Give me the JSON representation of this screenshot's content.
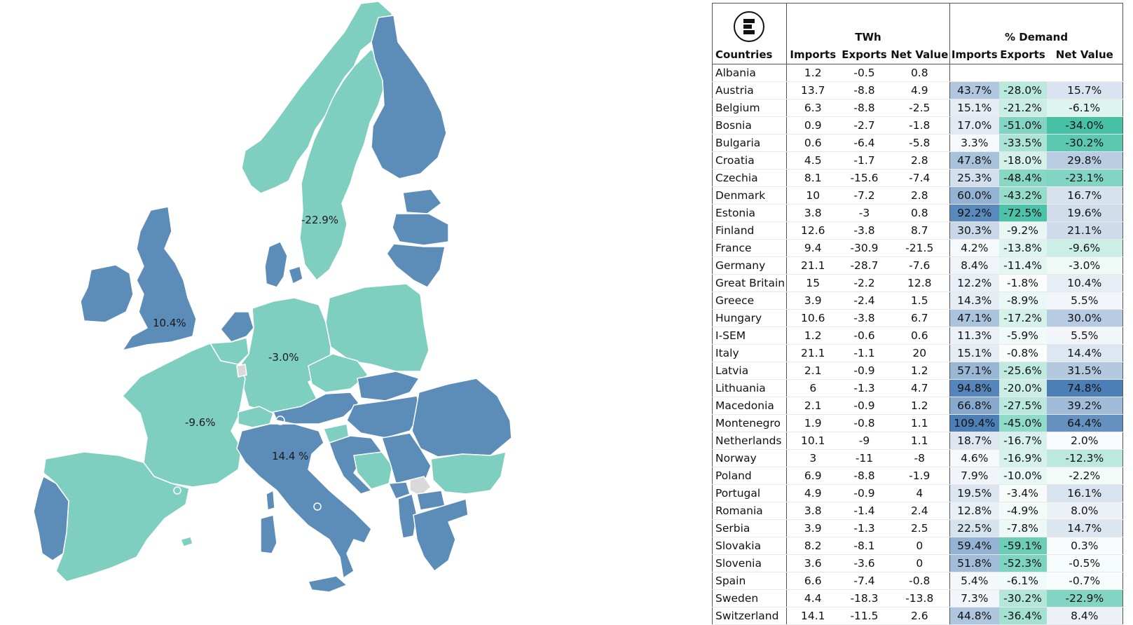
{
  "map": {
    "labels": [
      {
        "id": "sweden",
        "text": "-22.9%"
      },
      {
        "id": "great-britain",
        "text": "10.4%"
      },
      {
        "id": "germany",
        "text": "-3.0%"
      },
      {
        "id": "france",
        "text": "-9.6%"
      },
      {
        "id": "italy",
        "text": "14.4 %"
      }
    ],
    "colors": {
      "importer": "#5b8db8",
      "exporter": "#7fcfc0",
      "nodata": "#d9d9d9",
      "outline": "#ffffff"
    }
  },
  "table": {
    "group_twh": "TWh",
    "group_demand": "% Demand",
    "columns": [
      "Countries",
      "Imports",
      "Exports",
      "Net Value",
      "Imports",
      "Exports",
      "Net Value"
    ],
    "rows": [
      [
        "Albania",
        "1.2",
        "-0.5",
        "0.8",
        "",
        "",
        ""
      ],
      [
        "Austria",
        "13.7",
        "-8.8",
        "4.9",
        "43.7%",
        "-28.0%",
        "15.7%"
      ],
      [
        "Belgium",
        "6.3",
        "-8.8",
        "-2.5",
        "15.1%",
        "-21.2%",
        "-6.1%"
      ],
      [
        "Bosnia",
        "0.9",
        "-2.7",
        "-1.8",
        "17.0%",
        "-51.0%",
        "-34.0%"
      ],
      [
        "Bulgaria",
        "0.6",
        "-6.4",
        "-5.8",
        "3.3%",
        "-33.5%",
        "-30.2%"
      ],
      [
        "Croatia",
        "4.5",
        "-1.7",
        "2.8",
        "47.8%",
        "-18.0%",
        "29.8%"
      ],
      [
        "Czechia",
        "8.1",
        "-15.6",
        "-7.4",
        "25.3%",
        "-48.4%",
        "-23.1%"
      ],
      [
        "Denmark",
        "10",
        "-7.2",
        "2.8",
        "60.0%",
        "-43.2%",
        "16.7%"
      ],
      [
        "Estonia",
        "3.8",
        "-3",
        "0.8",
        "92.2%",
        "-72.5%",
        "19.6%"
      ],
      [
        "Finland",
        "12.6",
        "-3.8",
        "8.7",
        "30.3%",
        "-9.2%",
        "21.1%"
      ],
      [
        "France",
        "9.4",
        "-30.9",
        "-21.5",
        "4.2%",
        "-13.8%",
        "-9.6%"
      ],
      [
        "Germany",
        "21.1",
        "-28.7",
        "-7.6",
        "8.4%",
        "-11.4%",
        "-3.0%"
      ],
      [
        "Great Britain",
        "15",
        "-2.2",
        "12.8",
        "12.2%",
        "-1.8%",
        "10.4%"
      ],
      [
        "Greece",
        "3.9",
        "-2.4",
        "1.5",
        "14.3%",
        "-8.9%",
        "5.5%"
      ],
      [
        "Hungary",
        "10.6",
        "-3.8",
        "6.7",
        "47.1%",
        "-17.2%",
        "30.0%"
      ],
      [
        "I-SEM",
        "1.2",
        "-0.6",
        "0.6",
        "11.3%",
        "-5.9%",
        "5.5%"
      ],
      [
        "Italy",
        "21.1",
        "-1.1",
        "20",
        "15.1%",
        "-0.8%",
        "14.4%"
      ],
      [
        "Latvia",
        "2.1",
        "-0.9",
        "1.2",
        "57.1%",
        "-25.6%",
        "31.5%"
      ],
      [
        "Lithuania",
        "6",
        "-1.3",
        "4.7",
        "94.8%",
        "-20.0%",
        "74.8%"
      ],
      [
        "Macedonia",
        "2.1",
        "-0.9",
        "1.2",
        "66.8%",
        "-27.5%",
        "39.2%"
      ],
      [
        "Montenegro",
        "1.9",
        "-0.8",
        "1.1",
        "109.4%",
        "-45.0%",
        "64.4%"
      ],
      [
        "Netherlands",
        "10.1",
        "-9",
        "1.1",
        "18.7%",
        "-16.7%",
        "2.0%"
      ],
      [
        "Norway",
        "3",
        "-11",
        "-8",
        "4.6%",
        "-16.9%",
        "-12.3%"
      ],
      [
        "Poland",
        "6.9",
        "-8.8",
        "-1.9",
        "7.9%",
        "-10.0%",
        "-2.2%"
      ],
      [
        "Portugal",
        "4.9",
        "-0.9",
        "4",
        "19.5%",
        "-3.4%",
        "16.1%"
      ],
      [
        "Romania",
        "3.8",
        "-1.4",
        "2.4",
        "12.8%",
        "-4.9%",
        "8.0%"
      ],
      [
        "Serbia",
        "3.9",
        "-1.3",
        "2.5",
        "22.5%",
        "-7.8%",
        "14.7%"
      ],
      [
        "Slovakia",
        "8.2",
        "-8.1",
        "0",
        "59.4%",
        "-59.1%",
        "0.3%"
      ],
      [
        "Slovenia",
        "3.6",
        "-3.6",
        "0",
        "51.8%",
        "-52.3%",
        "-0.5%"
      ],
      [
        "Spain",
        "6.6",
        "-7.4",
        "-0.8",
        "5.4%",
        "-6.1%",
        "-0.7%"
      ],
      [
        "Sweden",
        "4.4",
        "-18.3",
        "-13.8",
        "7.3%",
        "-30.2%",
        "-22.9%"
      ],
      [
        "Switzerland",
        "14.1",
        "-11.5",
        "2.6",
        "44.8%",
        "-36.4%",
        "8.4%"
      ]
    ]
  }
}
